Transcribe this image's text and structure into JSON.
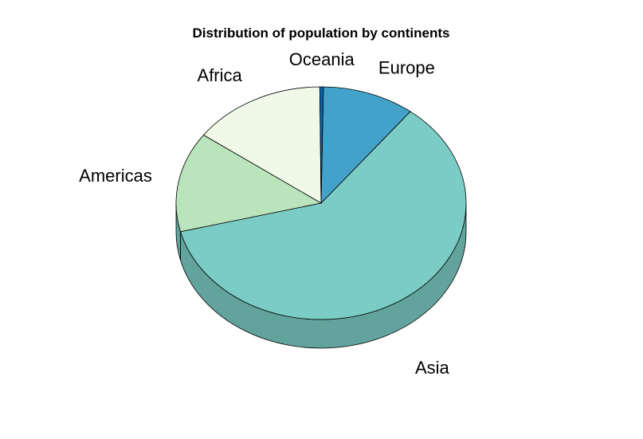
{
  "chart_data": {
    "type": "pie",
    "title": "Distribution of population by continents",
    "categories": [
      "Africa",
      "Americas",
      "Asia",
      "Europe",
      "Oceania"
    ],
    "values": [
      14.9,
      13.9,
      60.5,
      10.3,
      0.4
    ],
    "colors": {
      "Africa": "#f0f9e8",
      "Americas": "#bae4bc",
      "Asia": "#7bccc4",
      "Europe": "#43a2ca",
      "Oceania": "#0868ac"
    },
    "side_color": "#62a39d",
    "legend": "none",
    "style": "3d"
  }
}
